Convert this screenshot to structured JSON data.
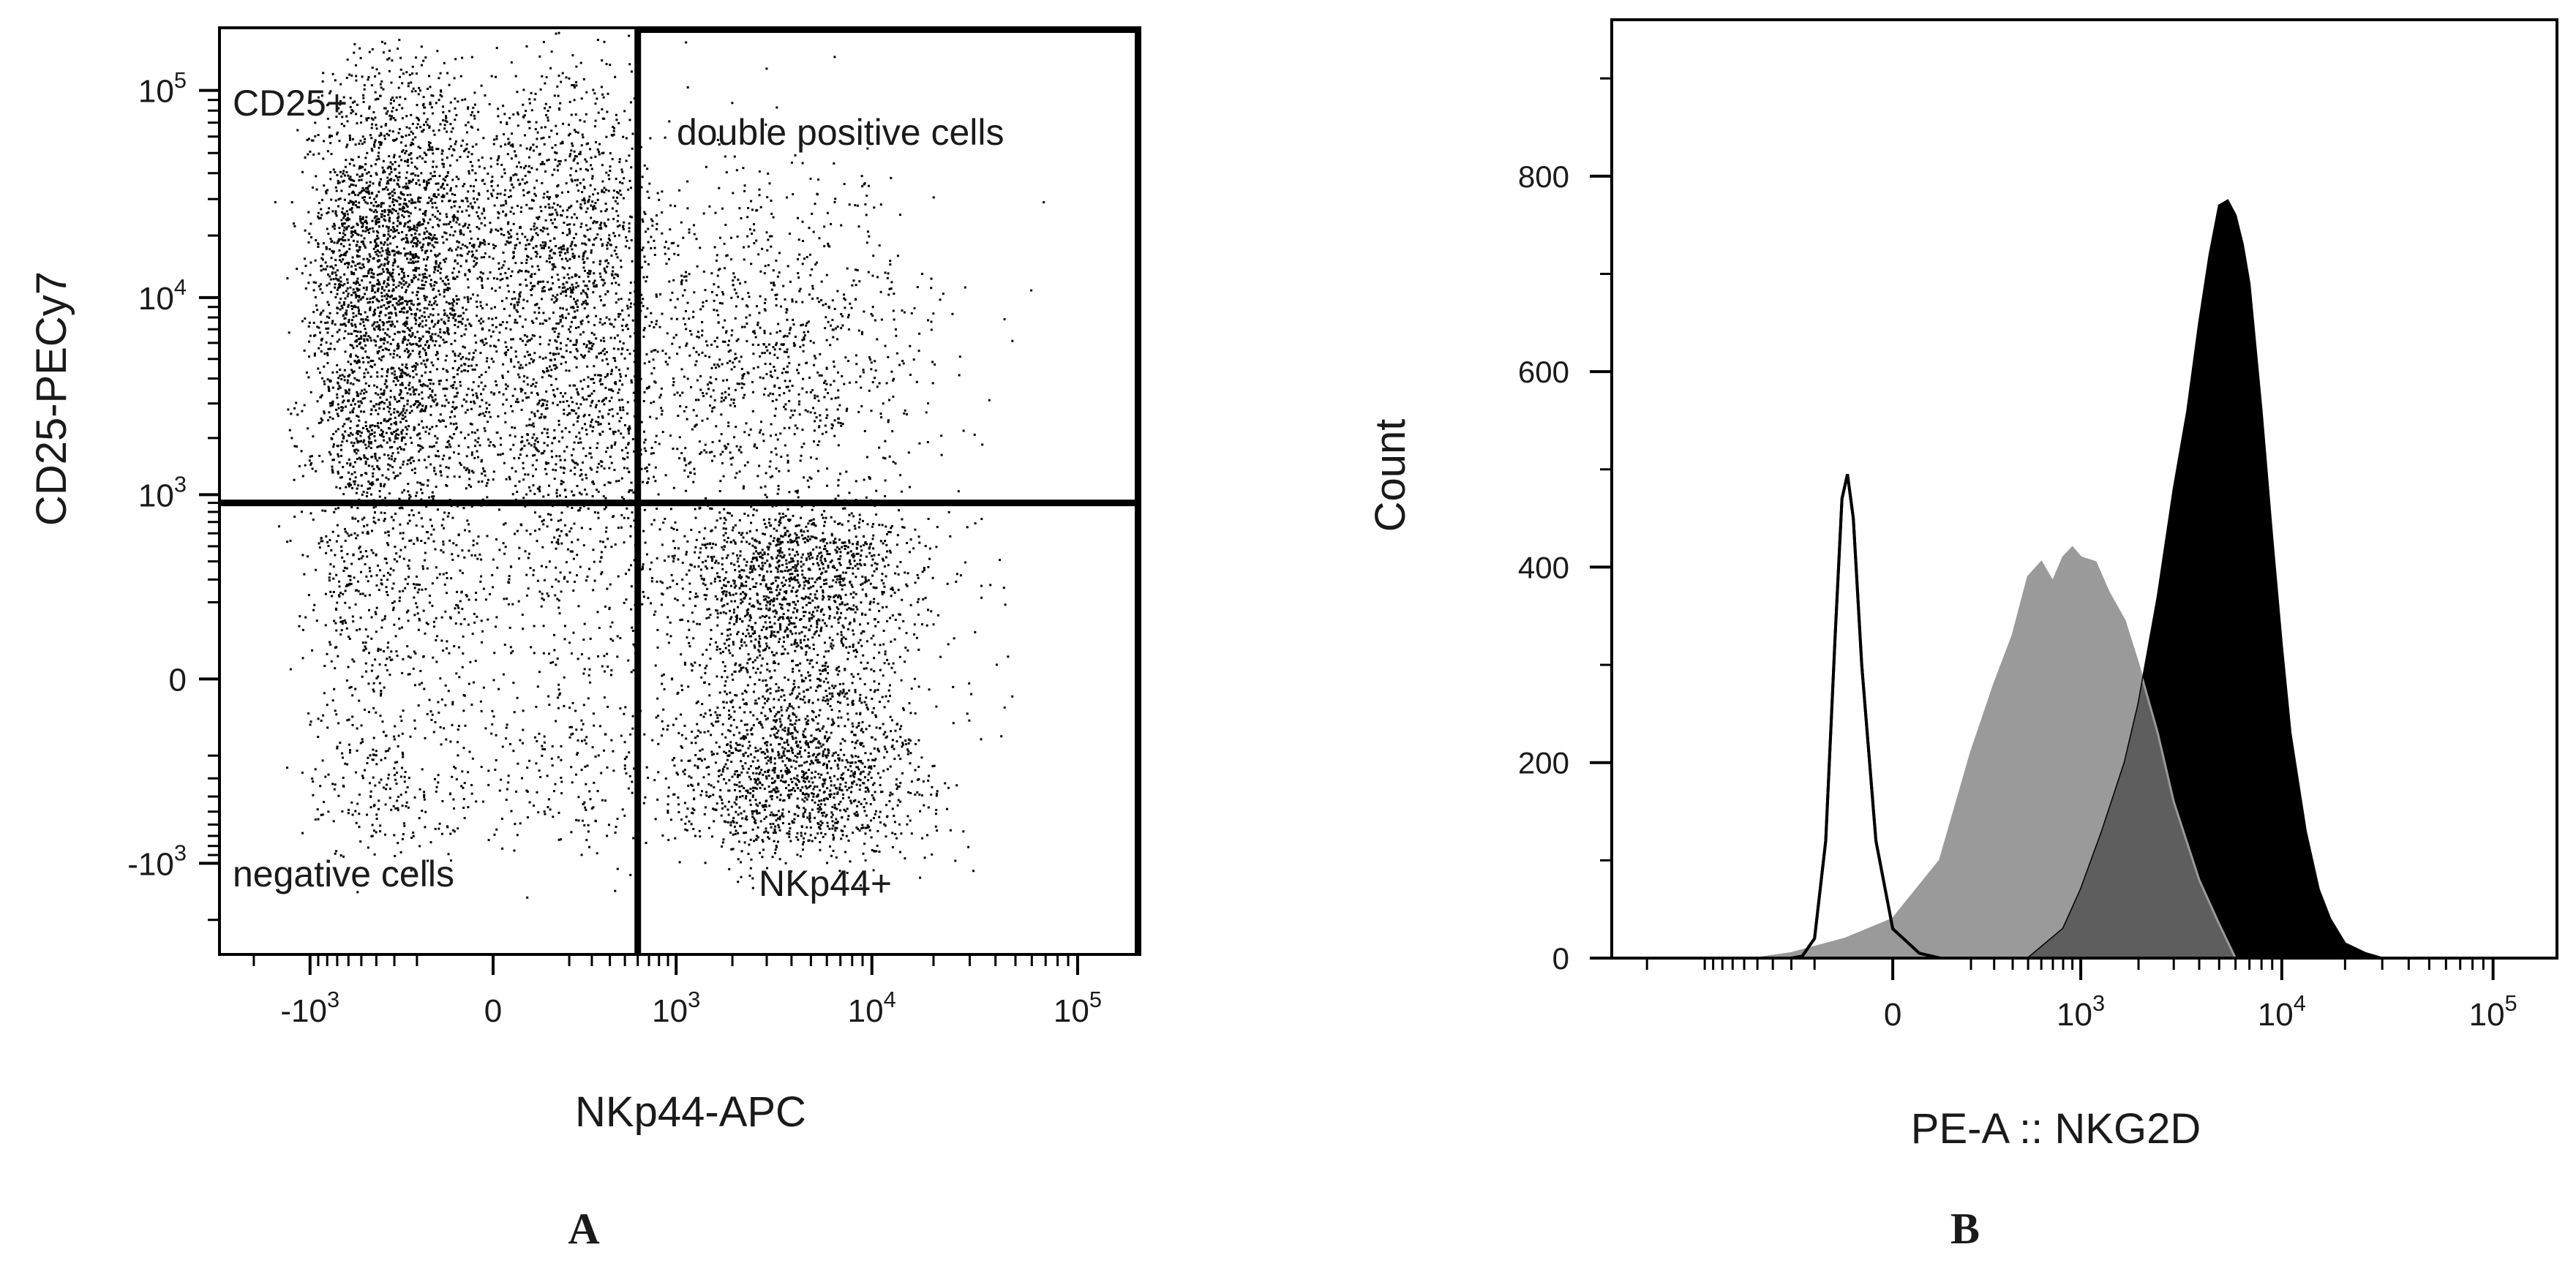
{
  "figure": {
    "panel_a_letter": "A",
    "panel_b_letter": "B"
  },
  "chart_data": [
    {
      "type": "scatter",
      "subtype": "flow-cytometry-dot-plot-with-quadrant-gates",
      "xlabel": "NKp44-APC",
      "ylabel": "CD25-PECy7",
      "x_scale": "biexponential",
      "y_scale": "biexponential",
      "xlim": [
        -3000,
        200000
      ],
      "ylim": [
        -3000,
        200000
      ],
      "x_ticks": [
        {
          "value": -1000,
          "base": "-10",
          "exp": "3"
        },
        {
          "value": 0,
          "base": "0",
          "exp": ""
        },
        {
          "value": 1000,
          "base": "10",
          "exp": "3"
        },
        {
          "value": 10000,
          "base": "10",
          "exp": "4"
        },
        {
          "value": 100000,
          "base": "10",
          "exp": "5"
        }
      ],
      "y_ticks": [
        {
          "value": -1000,
          "base": "-10",
          "exp": "3"
        },
        {
          "value": 0,
          "base": "0",
          "exp": ""
        },
        {
          "value": 1000,
          "base": "10",
          "exp": "3"
        },
        {
          "value": 10000,
          "base": "10",
          "exp": "4"
        },
        {
          "value": 100000,
          "base": "10",
          "exp": "5"
        }
      ],
      "gates": {
        "x_threshold": 600,
        "y_threshold": 900
      },
      "quadrant_labels": {
        "top_left": "CD25+",
        "top_right": "double positive cells",
        "bottom_left": "negative cells",
        "bottom_right": "NKp44+"
      },
      "populations": [
        {
          "x_center": -150,
          "y_center": 18000,
          "x_spread": 350,
          "y_spread_log": 0.45,
          "count": 3600
        },
        {
          "x_center": -120,
          "y_center": 2200,
          "x_spread": 380,
          "y_spread_log": 0.35,
          "count": 1500
        },
        {
          "x_center": 4200,
          "y_center": 0,
          "x_spread_log": 0.32,
          "y_spread": 380,
          "count": 3000
        },
        {
          "x_center": 3000,
          "y_center": 5000,
          "x_spread_log": 0.42,
          "y_spread_log": 0.45,
          "count": 1100
        },
        {
          "x_center": -100,
          "y_center": 0,
          "x_spread": 400,
          "y_spread": 380,
          "count": 1100
        }
      ],
      "grid": false,
      "legend": "none"
    },
    {
      "type": "area",
      "subtype": "flow-cytometry-histogram-overlay",
      "xlabel": "PE-A :: NKG2D",
      "ylabel": "Count",
      "x_scale": "biexponential",
      "xlim": [
        -3000,
        200000
      ],
      "ylim": [
        0,
        960
      ],
      "x_ticks": [
        {
          "value": 0,
          "base": "0",
          "exp": ""
        },
        {
          "value": 1000,
          "base": "10",
          "exp": "3"
        },
        {
          "value": 10000,
          "base": "10",
          "exp": "4"
        },
        {
          "value": 100000,
          "base": "10",
          "exp": "5"
        }
      ],
      "y_ticks": [
        0,
        200,
        400,
        600,
        800
      ],
      "series": [
        {
          "style": "outline",
          "color": "#000000",
          "fill": "none",
          "x": [
            -300,
            -250,
            -200,
            -160,
            -130,
            -110,
            -95,
            -80,
            -60,
            -30,
            0,
            50,
            100
          ],
          "y": [
            0,
            2,
            20,
            120,
            330,
            470,
            495,
            450,
            300,
            120,
            30,
            5,
            0
          ]
        },
        {
          "style": "filled",
          "color": "#9a9a9a",
          "fill": "#9a9a9a",
          "x": [
            -500,
            -300,
            -100,
            0,
            100,
            200,
            300,
            400,
            500,
            600,
            700,
            800,
            900,
            1000,
            1200,
            1400,
            1700,
            2000,
            2500,
            3000,
            4000,
            5000,
            6000
          ],
          "y": [
            0,
            5,
            20,
            40,
            100,
            210,
            280,
            330,
            390,
            405,
            385,
            410,
            420,
            410,
            405,
            375,
            345,
            300,
            230,
            160,
            80,
            35,
            0
          ]
        },
        {
          "style": "filled",
          "color": "#000000",
          "fill": "#000000",
          "x": [
            500,
            800,
            1000,
            1300,
            1700,
            2000,
            2500,
            3000,
            3500,
            4000,
            4500,
            5000,
            5500,
            6000,
            6500,
            7000,
            8000,
            9000,
            10000,
            11000,
            13000,
            15000,
            17000,
            20000,
            25000,
            30000
          ],
          "y": [
            0,
            30,
            70,
            130,
            200,
            260,
            370,
            480,
            560,
            650,
            720,
            770,
            775,
            760,
            730,
            690,
            560,
            430,
            320,
            230,
            130,
            70,
            40,
            15,
            5,
            0
          ]
        }
      ],
      "grid": false,
      "legend": "none"
    }
  ]
}
